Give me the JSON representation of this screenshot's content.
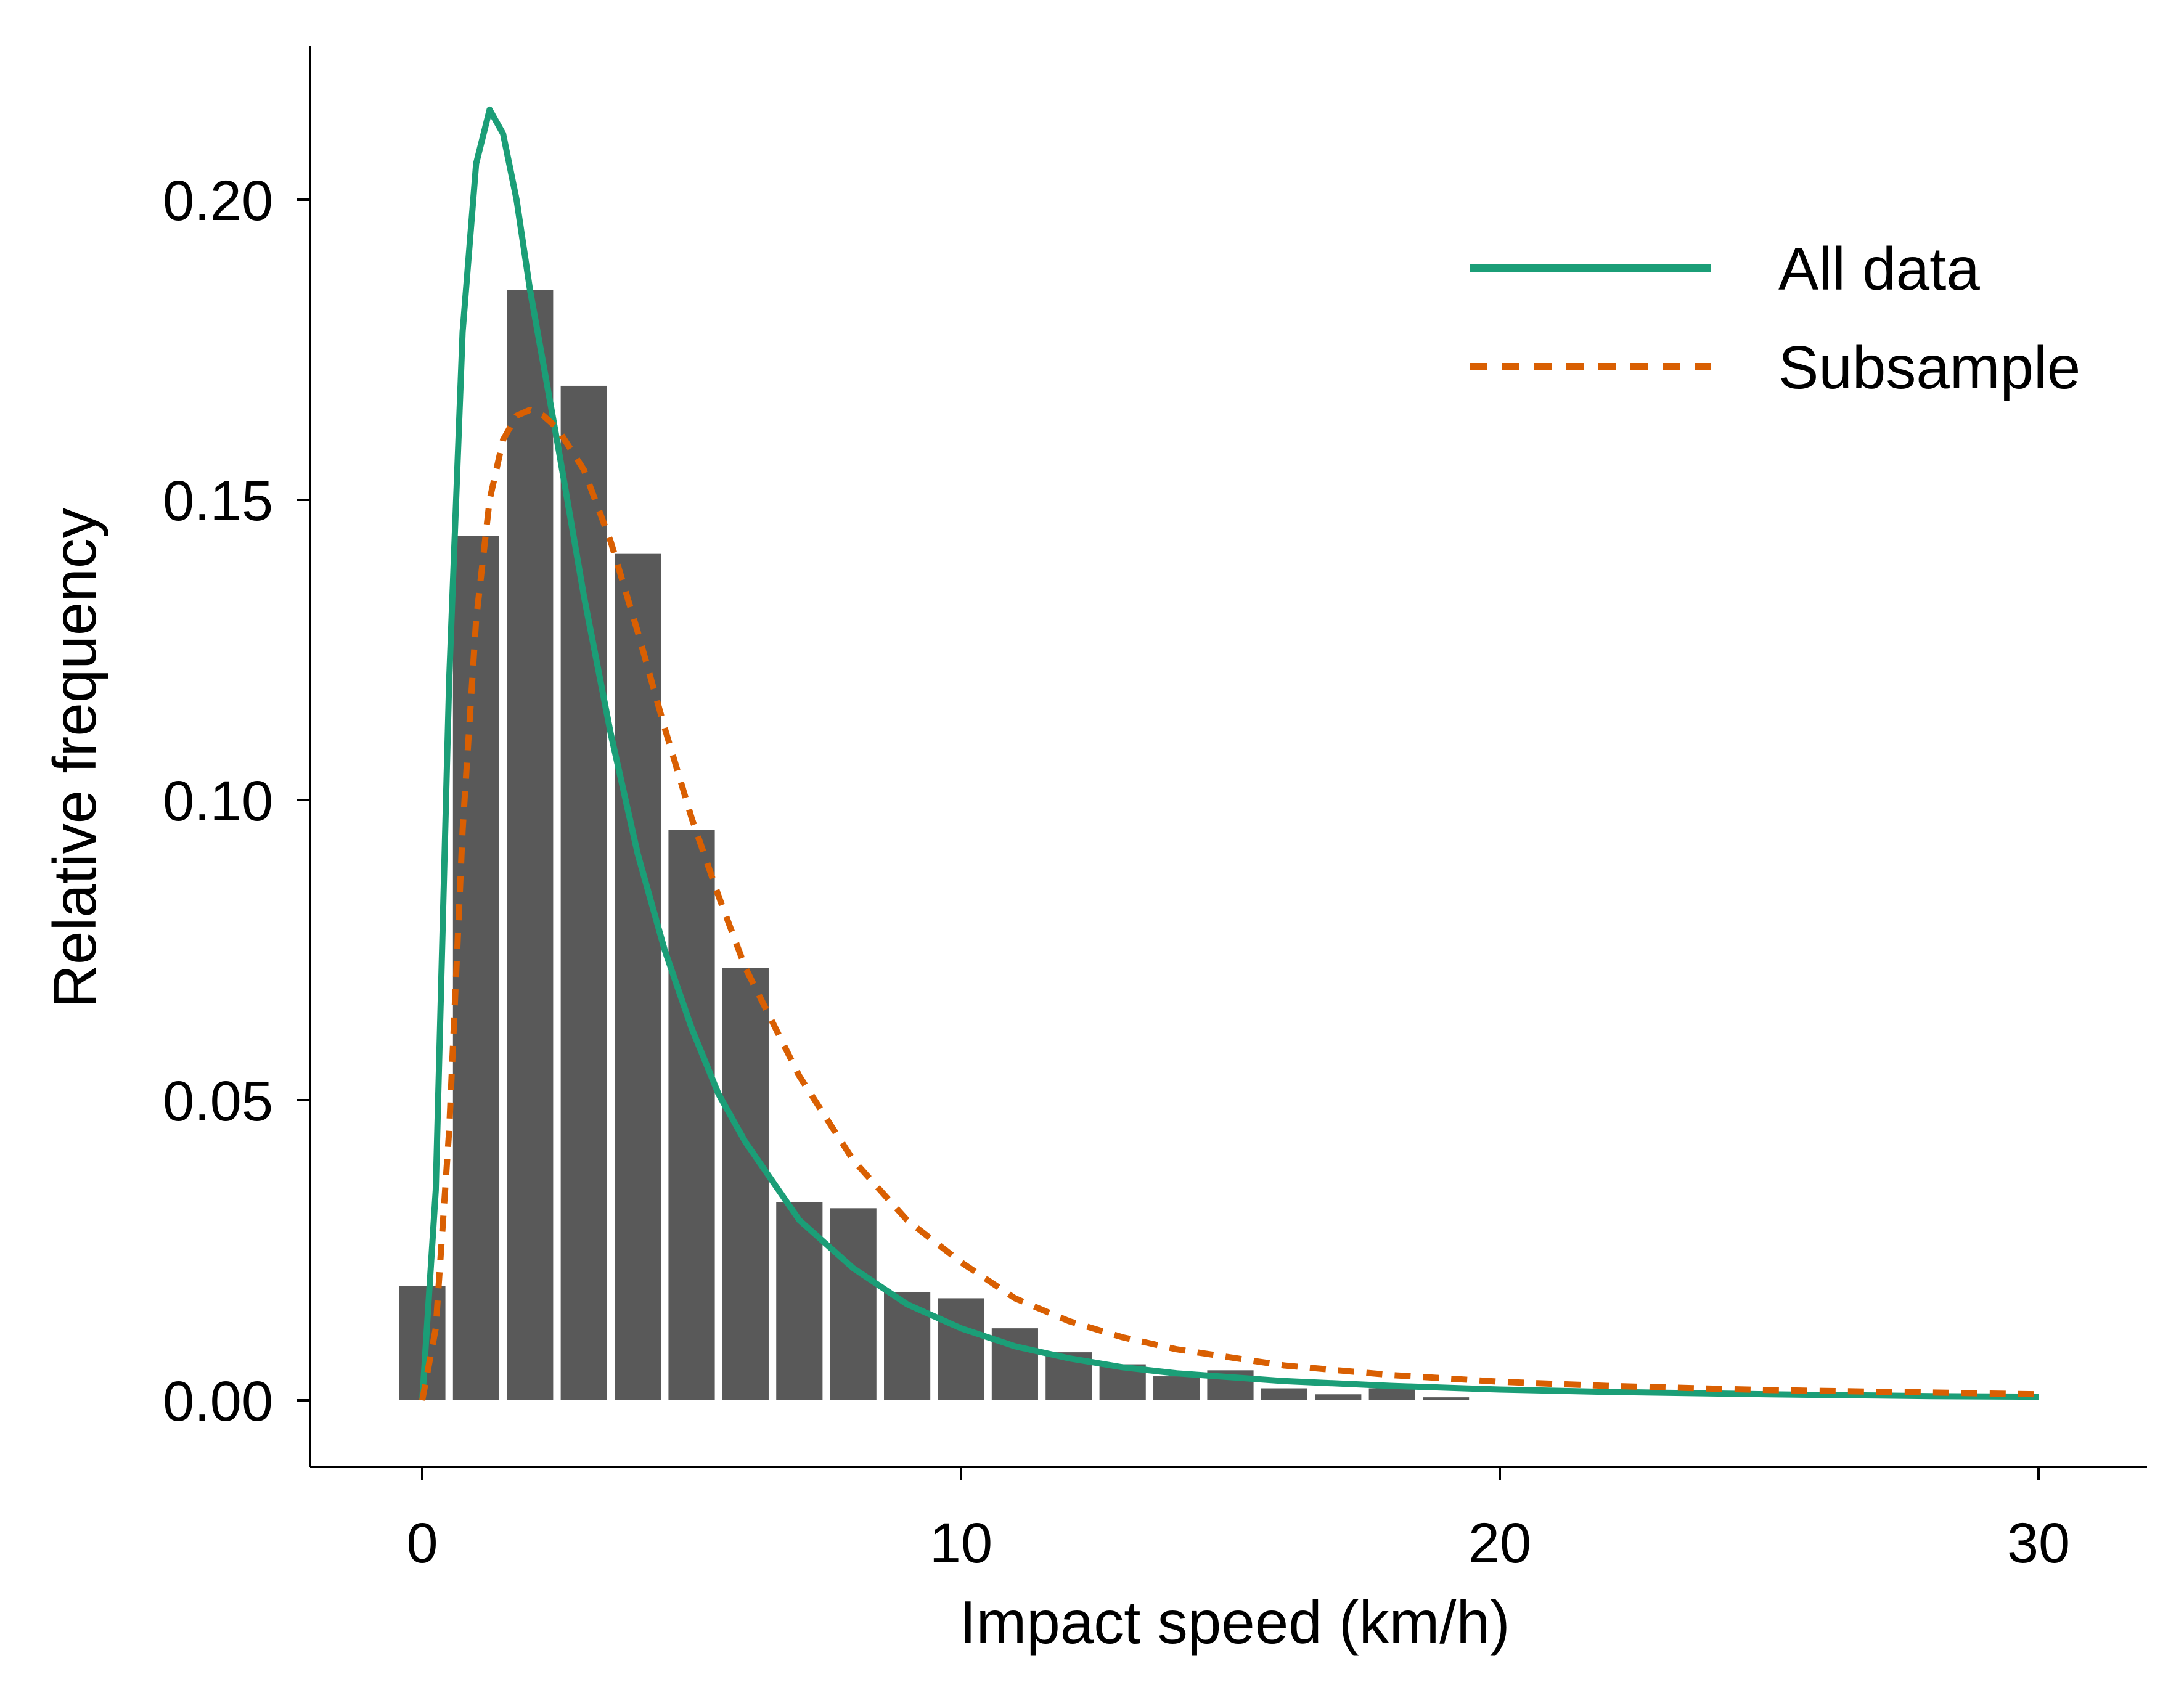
{
  "chart_data": {
    "type": "bar",
    "xlabel": "Impact speed (km/h)",
    "ylabel": "Relative frequency",
    "xlim": [
      -2,
      32
    ],
    "ylim": [
      -0.01,
      0.225
    ],
    "xticks": [
      0,
      10,
      20,
      30
    ],
    "xtick_labels": [
      "0",
      "10",
      "20",
      "30"
    ],
    "yticks": [
      0.0,
      0.05,
      0.1,
      0.15,
      0.2
    ],
    "ytick_labels": [
      "0.00",
      "0.05",
      "0.10",
      "0.15",
      "0.20"
    ],
    "grid": false,
    "legend_position": "top-right",
    "histogram": {
      "color": "#595959",
      "bin_width": 1,
      "bin_centers": [
        0,
        1,
        2,
        3,
        4,
        5,
        6,
        7,
        8,
        9,
        10,
        11,
        12,
        13,
        14,
        15,
        16,
        17,
        18,
        19
      ],
      "values": [
        0.019,
        0.144,
        0.185,
        0.169,
        0.141,
        0.095,
        0.072,
        0.033,
        0.032,
        0.018,
        0.017,
        0.012,
        0.008,
        0.006,
        0.004,
        0.005,
        0.002,
        0.001,
        0.002,
        0.0005
      ]
    },
    "series": [
      {
        "name": "All data",
        "style": "solid",
        "color": "#1b9e77",
        "x": [
          0,
          0.25,
          0.5,
          0.75,
          1.0,
          1.25,
          1.5,
          1.75,
          2.0,
          2.5,
          3.0,
          3.5,
          4.0,
          4.5,
          5.0,
          5.5,
          6.0,
          7.0,
          8.0,
          9.0,
          10.0,
          11.0,
          12.0,
          13.0,
          14.0,
          16.0,
          18.0,
          20.0,
          22.0,
          25.0,
          28.0,
          30.0
        ],
        "y": [
          0.0,
          0.035,
          0.12,
          0.178,
          0.206,
          0.215,
          0.211,
          0.2,
          0.185,
          0.16,
          0.134,
          0.111,
          0.091,
          0.075,
          0.062,
          0.051,
          0.043,
          0.03,
          0.022,
          0.016,
          0.012,
          0.009,
          0.007,
          0.0055,
          0.0045,
          0.0032,
          0.0024,
          0.0018,
          0.0014,
          0.001,
          0.0007,
          0.0006
        ]
      },
      {
        "name": "Subsample",
        "style": "dashed",
        "color": "#d95f02",
        "x": [
          0,
          0.25,
          0.5,
          0.75,
          1.0,
          1.25,
          1.5,
          1.75,
          2.0,
          2.25,
          2.5,
          3.0,
          3.5,
          4.0,
          4.5,
          5.0,
          5.5,
          6.0,
          7.0,
          8.0,
          9.0,
          10.0,
          11.0,
          12.0,
          13.0,
          14.0,
          16.0,
          18.0,
          20.0,
          22.0,
          25.0,
          28.0,
          30.0
        ],
        "y": [
          0.0,
          0.012,
          0.045,
          0.095,
          0.13,
          0.15,
          0.16,
          0.164,
          0.165,
          0.164,
          0.162,
          0.155,
          0.143,
          0.128,
          0.112,
          0.097,
          0.084,
          0.072,
          0.054,
          0.04,
          0.03,
          0.023,
          0.017,
          0.0132,
          0.0105,
          0.0085,
          0.0058,
          0.0042,
          0.0031,
          0.0024,
          0.0017,
          0.0013,
          0.001
        ]
      }
    ]
  }
}
